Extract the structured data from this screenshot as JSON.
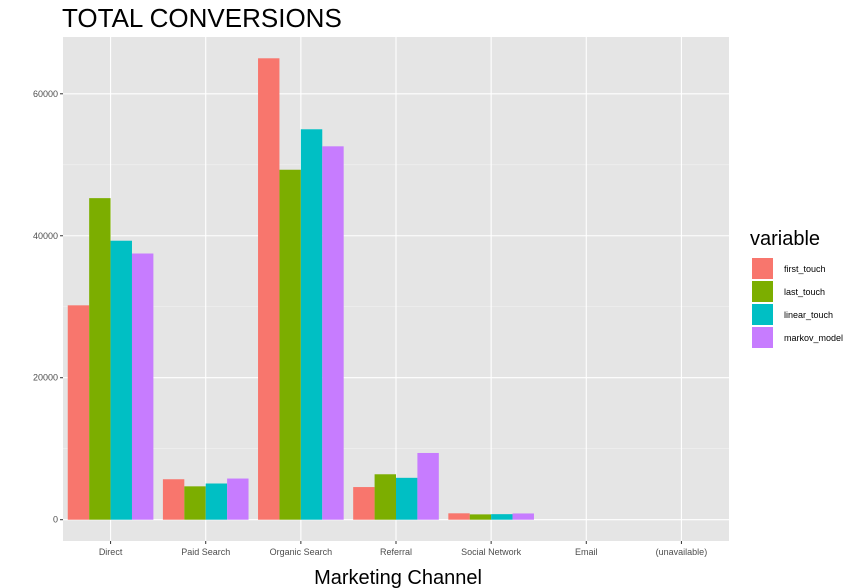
{
  "chart_data": {
    "type": "bar",
    "title": "TOTAL CONVERSIONS",
    "xlabel": "Marketing Channel",
    "ylabel": "",
    "categories": [
      "Direct",
      "Paid Search",
      "Organic Search",
      "Referral",
      "Social Network",
      "Email",
      "(unavailable)"
    ],
    "yticks": [
      "0",
      "20000",
      "40000",
      "60000"
    ],
    "ylim": [
      -3000,
      68000
    ],
    "legend_title": "variable",
    "legend_placement": "right",
    "grid": true,
    "series": [
      {
        "name": "first_touch",
        "color": "#F8766D",
        "values": [
          30200,
          5700,
          65000,
          4600,
          900,
          0,
          0
        ]
      },
      {
        "name": "last_touch",
        "color": "#7CAE00",
        "values": [
          45300,
          4700,
          49300,
          6400,
          750,
          0,
          0
        ]
      },
      {
        "name": "linear_touch",
        "color": "#00BFC4",
        "values": [
          39300,
          5100,
          55000,
          5900,
          780,
          0,
          0
        ]
      },
      {
        "name": "markov_model",
        "color": "#C77CFF",
        "values": [
          37500,
          5800,
          52600,
          9400,
          880,
          0,
          0
        ]
      }
    ]
  }
}
